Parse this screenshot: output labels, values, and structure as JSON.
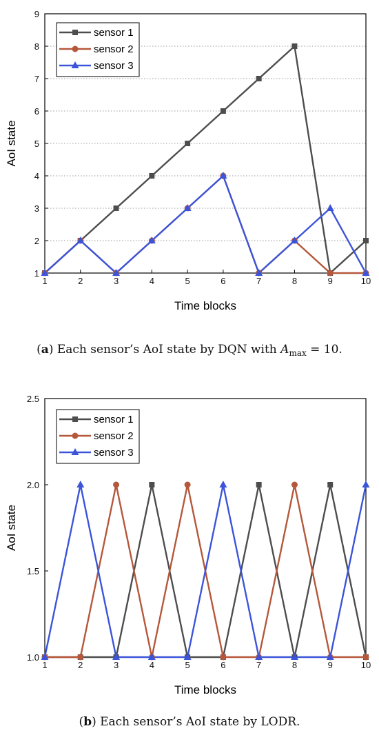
{
  "chart_data": [
    {
      "type": "line",
      "panel": "a",
      "xlabel": "Time blocks",
      "ylabel": "AoI state",
      "x": [
        1,
        2,
        3,
        4,
        5,
        6,
        7,
        8,
        9,
        10
      ],
      "xlim": [
        1,
        10
      ],
      "ylim": [
        1,
        9
      ],
      "xticks": [
        "1",
        "2",
        "3",
        "4",
        "5",
        "6",
        "7",
        "8",
        "9",
        "10"
      ],
      "yticks": [
        "1",
        "2",
        "3",
        "4",
        "5",
        "6",
        "7",
        "8",
        "9"
      ],
      "grid": "horizontal dotted",
      "legend_position": "top-left",
      "series": [
        {
          "name": "sensor 1",
          "color": "#4d4d4d",
          "marker": "square",
          "values": [
            1,
            2,
            3,
            4,
            5,
            6,
            7,
            8,
            1,
            2
          ]
        },
        {
          "name": "sensor 2",
          "color": "#b5573a",
          "marker": "circle",
          "values": [
            1,
            2,
            1,
            2,
            3,
            4,
            1,
            2,
            1,
            1
          ]
        },
        {
          "name": "sensor 3",
          "color": "#3b54d9",
          "marker": "triangle",
          "values": [
            1,
            2,
            1,
            2,
            3,
            4,
            1,
            2,
            3,
            1
          ]
        }
      ],
      "caption": {
        "label": "(a)",
        "text_before": " Each sensor’s AoI state by DQN with ",
        "math_var": "A",
        "math_sub": "max",
        "text_after": " = 10."
      }
    },
    {
      "type": "line",
      "panel": "b",
      "xlabel": "Time blocks",
      "ylabel": "AoI state",
      "x": [
        1,
        2,
        3,
        4,
        5,
        6,
        7,
        8,
        9,
        10
      ],
      "xlim": [
        1,
        10
      ],
      "ylim": [
        1,
        2.5
      ],
      "xticks": [
        "1",
        "2",
        "3",
        "4",
        "5",
        "6",
        "7",
        "8",
        "9",
        "10"
      ],
      "yticks": [
        "1.0",
        "1.5",
        "2.0",
        "2.5"
      ],
      "grid": "none",
      "legend_position": "top-left",
      "series": [
        {
          "name": "sensor 1",
          "color": "#4d4d4d",
          "marker": "square",
          "values": [
            1,
            1,
            1,
            2,
            1,
            1,
            2,
            1,
            2,
            1
          ]
        },
        {
          "name": "sensor 2",
          "color": "#b5573a",
          "marker": "circle",
          "values": [
            1,
            1,
            2,
            1,
            2,
            1,
            1,
            2,
            1,
            1
          ]
        },
        {
          "name": "sensor 3",
          "color": "#3b54d9",
          "marker": "triangle",
          "values": [
            1,
            2,
            1,
            1,
            1,
            2,
            1,
            1,
            1,
            2
          ]
        }
      ],
      "caption": {
        "label": "(b)",
        "text_before": " Each sensor’s AoI state by LODR.",
        "math_var": "",
        "math_sub": "",
        "text_after": ""
      }
    }
  ]
}
